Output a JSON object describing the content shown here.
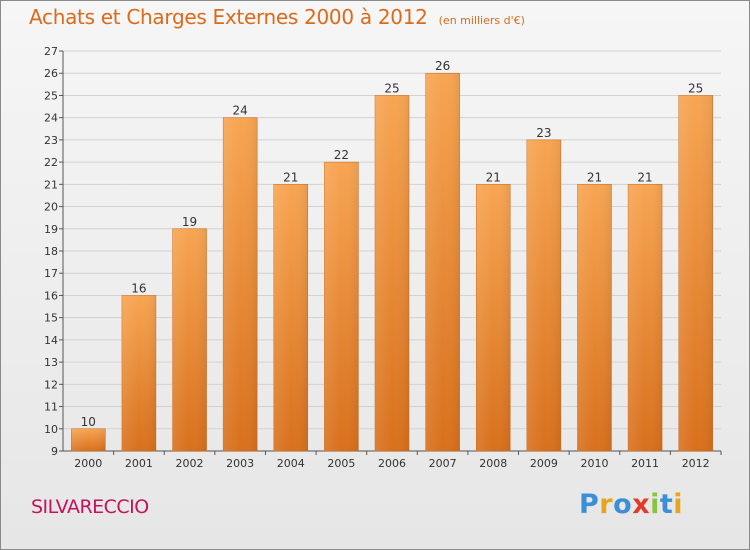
{
  "header": {
    "title": "Achats et Charges Externes 2000 à 2012",
    "subtitle": "(en milliers d'€)"
  },
  "footer": {
    "commune": "SILVARECCIO",
    "brand": "Proxiti",
    "brand_colors": [
      "#3b8fd6",
      "#e8a41c",
      "#3b8fd6",
      "#e23b2b",
      "#8ac43f",
      "#3b8fd6",
      "#e8a41c"
    ]
  },
  "colors": {
    "bar_light": "#f7a552",
    "bar_dark": "#d8701c",
    "title": "#db6a1b",
    "commune": "#c3135e"
  },
  "chart_data": {
    "type": "bar",
    "title": "Achats et Charges Externes 2000 à 2012",
    "subtitle": "(en milliers d'€)",
    "categories": [
      "2000",
      "2001",
      "2002",
      "2003",
      "2004",
      "2005",
      "2006",
      "2007",
      "2008",
      "2009",
      "2010",
      "2011",
      "2012"
    ],
    "values": [
      10,
      16,
      19,
      24,
      21,
      22,
      25,
      26,
      21,
      23,
      21,
      21,
      25
    ],
    "ylim": [
      9,
      27
    ],
    "yticks": [
      9,
      10,
      11,
      12,
      13,
      14,
      15,
      16,
      17,
      18,
      19,
      20,
      21,
      22,
      23,
      24,
      25,
      26,
      27
    ],
    "grid": true,
    "legend": "none"
  }
}
